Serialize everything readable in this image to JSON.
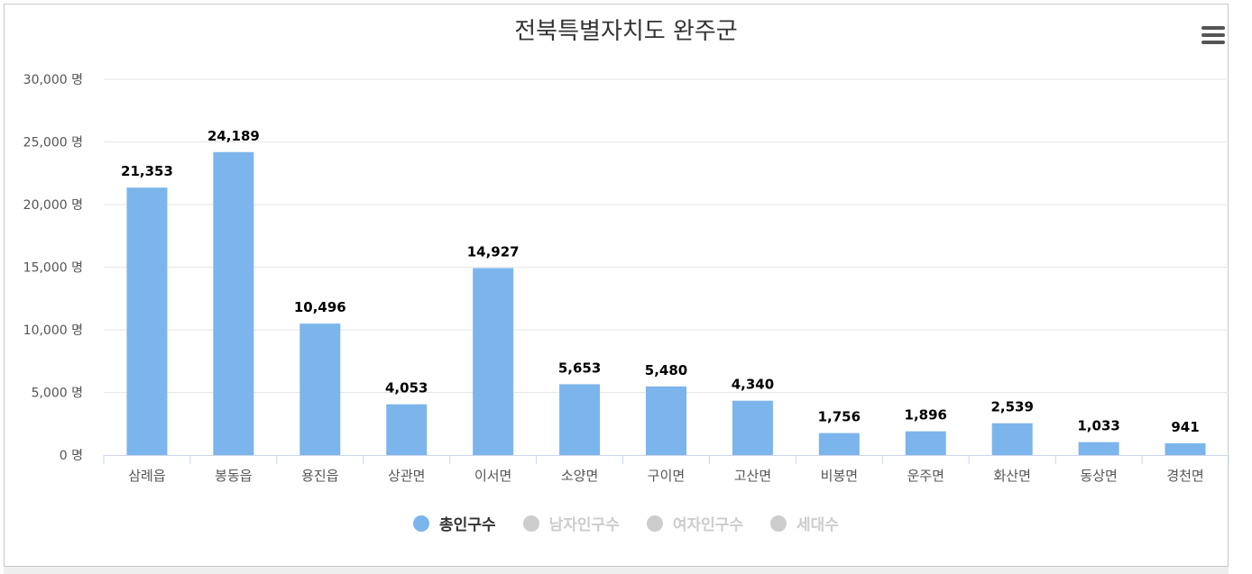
{
  "title": "전북특별자치도 완주군",
  "colors": {
    "bar": "#7cb5ec",
    "legend_active_text": "#333333",
    "legend_inactive": "#cccccc",
    "grid": "#e6e6e6",
    "axis_text": "#555555"
  },
  "menu_icon": "hamburger-menu-icon",
  "legend": [
    {
      "label": "총인구수",
      "active": true
    },
    {
      "label": "남자인구수",
      "active": false
    },
    {
      "label": "여자인구수",
      "active": false
    },
    {
      "label": "세대수",
      "active": false
    }
  ],
  "chart_data": {
    "type": "bar",
    "title": "전북특별자치도 완주군",
    "categories": [
      "삼례읍",
      "봉동읍",
      "용진읍",
      "상관면",
      "이서면",
      "소양면",
      "구이면",
      "고산면",
      "비봉면",
      "운주면",
      "화산면",
      "동상면",
      "경천면"
    ],
    "series": [
      {
        "name": "총인구수",
        "values": [
          21353,
          24189,
          10496,
          4053,
          14927,
          5653,
          5480,
          4340,
          1756,
          1896,
          2539,
          1033,
          941
        ]
      }
    ],
    "data_labels": [
      "21,353",
      "24,189",
      "10,496",
      "4,053",
      "14,927",
      "5,653",
      "5,480",
      "4,340",
      "1,756",
      "1,896",
      "2,539",
      "1,033",
      "941"
    ],
    "y_ticks": [
      0,
      5000,
      10000,
      15000,
      20000,
      25000,
      30000
    ],
    "y_tick_labels": [
      "0 명",
      "5,000 명",
      "10,000 명",
      "15,000 명",
      "20,000 명",
      "25,000 명",
      "30,000 명"
    ],
    "ylim": [
      0,
      30000
    ],
    "grid": true,
    "legend_position": "bottom"
  }
}
